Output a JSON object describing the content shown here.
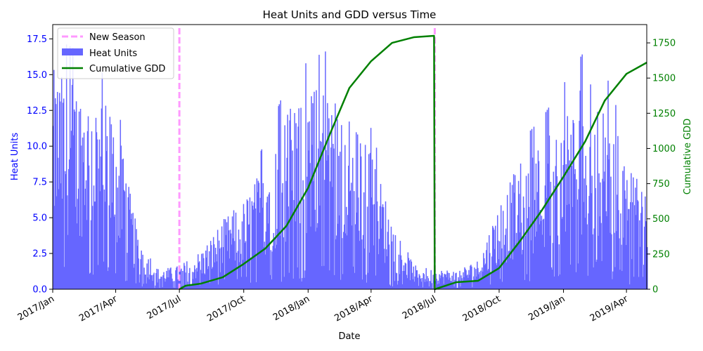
{
  "chart_data": {
    "type": "bar+line",
    "title": "Heat Units and GDD versus Time",
    "xlabel": "Date",
    "ylabel_left": "Heat Units",
    "ylabel_right": "Cumulative GDD",
    "ylim_left": [
      0,
      18.5
    ],
    "ylim_right": [
      0,
      1880
    ],
    "yticks_left": [
      "0.0",
      "2.5",
      "5.0",
      "7.5",
      "10.0",
      "12.5",
      "15.0",
      "17.5"
    ],
    "yticks_right": [
      "0",
      "250",
      "500",
      "750",
      "1000",
      "1250",
      "1500",
      "1750"
    ],
    "xticks": [
      {
        "date": "2017-01-01",
        "label": "2017/Jan"
      },
      {
        "date": "2017-04-01",
        "label": "2017/Apr"
      },
      {
        "date": "2017-07-01",
        "label": "2017/Jul"
      },
      {
        "date": "2017-10-01",
        "label": "2017/Oct"
      },
      {
        "date": "2018-01-01",
        "label": "2018/Jan"
      },
      {
        "date": "2018-04-01",
        "label": "2018/Apr"
      },
      {
        "date": "2018-07-01",
        "label": "2018/Jul"
      },
      {
        "date": "2018-10-01",
        "label": "2018/Oct"
      },
      {
        "date": "2019-01-01",
        "label": "2019/Jan"
      },
      {
        "date": "2019-04-01",
        "label": "2019/Apr"
      }
    ],
    "xlim": [
      "2017-01-01",
      "2019-04-30"
    ],
    "legend": {
      "placement": "top-left",
      "entries": [
        "New Season",
        "Heat Units",
        "Cumulative GDD"
      ]
    },
    "colors": {
      "heat_units": "#6666ff",
      "gdd": "#008000",
      "new_season": "#ff99ff",
      "left_axis_text": "#0000ff",
      "right_axis_text": "#008000"
    },
    "new_season_dates": [
      "2017-07-01",
      "2018-07-01"
    ],
    "heat_units_profile": [
      [
        "2017-01-01",
        11.0
      ],
      [
        "2017-02-01",
        10.5
      ],
      [
        "2017-03-01",
        10.0
      ],
      [
        "2017-04-01",
        8.5
      ],
      [
        "2017-05-01",
        3.0
      ],
      [
        "2017-06-01",
        1.0
      ],
      [
        "2017-07-01",
        1.2
      ],
      [
        "2017-08-01",
        2.0
      ],
      [
        "2017-09-01",
        3.5
      ],
      [
        "2017-10-01",
        4.5
      ],
      [
        "2017-11-01",
        6.5
      ],
      [
        "2017-12-01",
        9.0
      ],
      [
        "2018-01-01",
        10.0
      ],
      [
        "2018-02-01",
        10.5
      ],
      [
        "2018-03-01",
        8.5
      ],
      [
        "2018-04-01",
        7.0
      ],
      [
        "2018-05-01",
        3.5
      ],
      [
        "2018-06-01",
        1.2
      ],
      [
        "2018-07-01",
        1.0
      ],
      [
        "2018-08-01",
        1.0
      ],
      [
        "2018-09-01",
        1.5
      ],
      [
        "2018-10-01",
        4.5
      ],
      [
        "2018-11-01",
        6.5
      ],
      [
        "2018-12-01",
        7.5
      ],
      [
        "2019-01-01",
        9.0
      ],
      [
        "2019-02-01",
        10.5
      ],
      [
        "2019-03-01",
        9.5
      ],
      [
        "2019-04-01",
        6.5
      ],
      [
        "2019-04-30",
        4.5
      ]
    ],
    "cumulative_gdd": [
      {
        "date": "2017-07-01",
        "gdd": 0
      },
      {
        "date": "2017-07-10",
        "gdd": 25
      },
      {
        "date": "2017-08-01",
        "gdd": 40
      },
      {
        "date": "2017-09-01",
        "gdd": 85
      },
      {
        "date": "2017-10-01",
        "gdd": 180
      },
      {
        "date": "2017-11-01",
        "gdd": 290
      },
      {
        "date": "2017-12-01",
        "gdd": 450
      },
      {
        "date": "2018-01-01",
        "gdd": 720
      },
      {
        "date": "2018-02-01",
        "gdd": 1100
      },
      {
        "date": "2018-03-01",
        "gdd": 1430
      },
      {
        "date": "2018-04-01",
        "gdd": 1620
      },
      {
        "date": "2018-05-01",
        "gdd": 1750
      },
      {
        "date": "2018-06-01",
        "gdd": 1790
      },
      {
        "date": "2018-06-30",
        "gdd": 1800
      },
      {
        "date": "2018-07-01",
        "gdd": 0
      },
      {
        "date": "2018-08-01",
        "gdd": 50
      },
      {
        "date": "2018-09-01",
        "gdd": 60
      },
      {
        "date": "2018-10-01",
        "gdd": 150
      },
      {
        "date": "2018-11-01",
        "gdd": 350
      },
      {
        "date": "2018-12-01",
        "gdd": 560
      },
      {
        "date": "2019-01-01",
        "gdd": 800
      },
      {
        "date": "2019-02-01",
        "gdd": 1050
      },
      {
        "date": "2019-03-01",
        "gdd": 1340
      },
      {
        "date": "2019-04-01",
        "gdd": 1530
      },
      {
        "date": "2019-04-30",
        "gdd": 1610
      }
    ]
  }
}
